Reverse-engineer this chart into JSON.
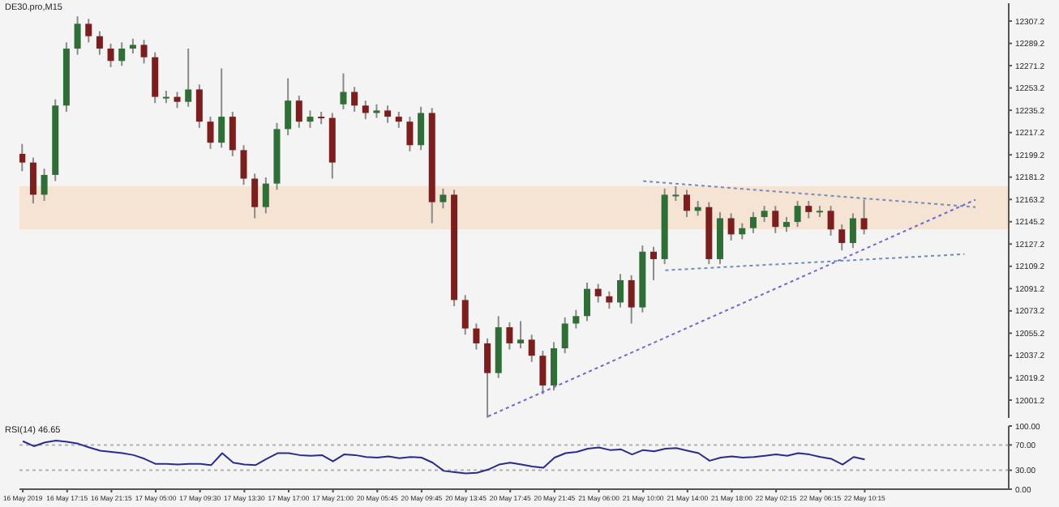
{
  "chart_data": [
    {
      "type": "candlestick",
      "title": "DE30.pro,M15",
      "categories": [
        null,
        null,
        null,
        null,
        null,
        null,
        null,
        null,
        null,
        null,
        null,
        null,
        null,
        null,
        null,
        null,
        null,
        null,
        null,
        null,
        null,
        null,
        null,
        null,
        null,
        null,
        null,
        null,
        null,
        null,
        null,
        null,
        null,
        null,
        null,
        null,
        null,
        null,
        null,
        null,
        null,
        null,
        null,
        null,
        null,
        null,
        null,
        null,
        null,
        null,
        null,
        null,
        null,
        null,
        null,
        null,
        null,
        null,
        null,
        null,
        null,
        null,
        null,
        null,
        null,
        null,
        null,
        null,
        null,
        null,
        null,
        null,
        null,
        null,
        null,
        null,
        null,
        null,
        null,
        null,
        null,
        null,
        null,
        null,
        null,
        null,
        null
      ],
      "ohlc": [
        [
          12200,
          12208,
          12186,
          12193
        ],
        [
          12193,
          12197,
          12160,
          12167
        ],
        [
          12167,
          12188,
          12162,
          12183
        ],
        [
          12183,
          12244,
          12178,
          12239
        ],
        [
          12239,
          12290,
          12234,
          12285
        ],
        [
          12285,
          12311,
          12280,
          12305
        ],
        [
          12305,
          12309,
          12290,
          12295
        ],
        [
          12295,
          12299,
          12280,
          12285
        ],
        [
          12285,
          12289,
          12270,
          12275
        ],
        [
          12275,
          12290,
          12271,
          12285
        ],
        [
          12285,
          12293,
          12281,
          12288
        ],
        [
          12288,
          12292,
          12273,
          12278
        ],
        [
          12278,
          12282,
          12241,
          12246
        ],
        [
          12246,
          12251,
          12241,
          12246
        ],
        [
          12246,
          12250,
          12237,
          12242
        ],
        [
          12242,
          12285,
          12238,
          12252
        ],
        [
          12252,
          12256,
          12221,
          12226
        ],
        [
          12226,
          12230,
          12204,
          12209
        ],
        [
          12209,
          12269,
          12205,
          12230
        ],
        [
          12230,
          12234,
          12198,
          12203
        ],
        [
          12203,
          12207,
          12175,
          12180
        ],
        [
          12180,
          12184,
          12148,
          12157
        ],
        [
          12157,
          12181,
          12152,
          12176
        ],
        [
          12176,
          12225,
          12171,
          12220
        ],
        [
          12220,
          12261,
          12215,
          12243
        ],
        [
          12243,
          12247,
          12221,
          12226
        ],
        [
          12226,
          12235,
          12221,
          12230
        ],
        [
          12230,
          12234,
          12224,
          12229
        ],
        [
          12229,
          12233,
          12180,
          12193
        ],
        [
          12240,
          12265,
          12236,
          12250
        ],
        [
          12250,
          12254,
          12234,
          12239
        ],
        [
          12239,
          12243,
          12228,
          12233
        ],
        [
          12233,
          12240,
          12229,
          12235
        ],
        [
          12235,
          12239,
          12225,
          12230
        ],
        [
          12230,
          12234,
          12221,
          12226
        ],
        [
          12226,
          12230,
          12202,
          12207
        ],
        [
          12207,
          12238,
          12203,
          12233
        ],
        [
          12233,
          12237,
          12144,
          12161
        ],
        [
          12161,
          12172,
          12156,
          12167
        ],
        [
          12167,
          12171,
          12077,
          12082
        ],
        [
          12082,
          12086,
          12054,
          12059
        ],
        [
          12059,
          12063,
          12042,
          12047
        ],
        [
          12047,
          12051,
          11987,
          12023
        ],
        [
          12023,
          12069,
          12019,
          12060
        ],
        [
          12060,
          12064,
          12042,
          12047
        ],
        [
          12047,
          12065,
          12043,
          12050
        ],
        [
          12050,
          12054,
          12032,
          12037
        ],
        [
          12037,
          12041,
          12006,
          12013
        ],
        [
          12013,
          12048,
          12009,
          12043
        ],
        [
          12043,
          12068,
          12039,
          12063
        ],
        [
          12063,
          12074,
          12059,
          12069
        ],
        [
          12069,
          12096,
          12065,
          12091
        ],
        [
          12091,
          12095,
          12080,
          12085
        ],
        [
          12085,
          12089,
          12075,
          12080
        ],
        [
          12080,
          12103,
          12076,
          12098
        ],
        [
          12098,
          12102,
          12063,
          12076
        ],
        [
          12076,
          12126,
          12072,
          12121
        ],
        [
          12121,
          12125,
          12098,
          12115
        ],
        [
          12115,
          12172,
          12111,
          12167
        ],
        [
          12167,
          12174,
          12162,
          12167
        ],
        [
          12167,
          12171,
          12149,
          12154
        ],
        [
          12154,
          12162,
          12150,
          12157
        ],
        [
          12157,
          12161,
          12111,
          12115
        ],
        [
          12115,
          12153,
          12111,
          12148
        ],
        [
          12148,
          12152,
          12130,
          12135
        ],
        [
          12135,
          12144,
          12131,
          12140
        ],
        [
          12140,
          12153,
          12136,
          12149
        ],
        [
          12149,
          12158,
          12145,
          12154
        ],
        [
          12154,
          12158,
          12136,
          12141
        ],
        [
          12141,
          12149,
          12137,
          12145
        ],
        [
          12145,
          12162,
          12141,
          12158
        ],
        [
          12158,
          12162,
          12148,
          12153
        ],
        [
          12153,
          12158,
          12149,
          12154
        ],
        [
          12154,
          12158,
          12134,
          12139
        ],
        [
          12139,
          12143,
          12122,
          12128
        ],
        [
          12128,
          12152,
          12124,
          12148
        ],
        [
          12148,
          12163,
          12135,
          12139
        ],
        null,
        null,
        null,
        null,
        null,
        null,
        null,
        null,
        null,
        null
      ],
      "series": [
        {
          "type": "line",
          "color": "#6f8fb8",
          "line_style": "dotted",
          "values": [
            null,
            null,
            null,
            null,
            null,
            null,
            null,
            null,
            null,
            null,
            null,
            null,
            null,
            null,
            null,
            null,
            null,
            null,
            null,
            null,
            null,
            null,
            null,
            null,
            null,
            null,
            null,
            null,
            null,
            null,
            null,
            null,
            null,
            null,
            null,
            null,
            null,
            null,
            null,
            null,
            null,
            null,
            null,
            null,
            null,
            null,
            null,
            null,
            null,
            null,
            null,
            null,
            null,
            null,
            null,
            null,
            12178,
            null,
            null,
            null,
            null,
            null,
            null,
            null,
            null,
            null,
            null,
            null,
            null,
            null,
            null,
            null,
            null,
            null,
            null,
            null,
            null,
            null,
            null,
            null,
            null,
            null,
            null,
            null,
            null,
            null,
            12157
          ]
        },
        {
          "type": "line",
          "color": "#6f8fb8",
          "line_style": "dotted",
          "values": [
            null,
            null,
            null,
            null,
            null,
            null,
            null,
            null,
            null,
            null,
            null,
            null,
            null,
            null,
            null,
            null,
            null,
            null,
            null,
            null,
            null,
            null,
            null,
            null,
            null,
            null,
            null,
            null,
            null,
            null,
            null,
            null,
            null,
            null,
            null,
            null,
            null,
            null,
            null,
            null,
            null,
            null,
            null,
            null,
            null,
            null,
            null,
            null,
            null,
            null,
            null,
            null,
            null,
            null,
            null,
            null,
            null,
            null,
            12106,
            null,
            null,
            null,
            null,
            null,
            null,
            null,
            null,
            null,
            null,
            null,
            null,
            null,
            null,
            null,
            null,
            null,
            null,
            null,
            null,
            null,
            null,
            null,
            null,
            null,
            null,
            12119,
            null
          ]
        },
        {
          "type": "line",
          "color": "#6a6ad0",
          "line_style": "dotted",
          "values": [
            null,
            null,
            null,
            null,
            null,
            null,
            null,
            null,
            null,
            null,
            null,
            null,
            null,
            null,
            null,
            null,
            null,
            null,
            null,
            null,
            null,
            null,
            null,
            null,
            null,
            null,
            null,
            null,
            null,
            null,
            null,
            null,
            null,
            null,
            null,
            null,
            null,
            null,
            null,
            null,
            null,
            null,
            11988,
            null,
            null,
            null,
            null,
            null,
            null,
            null,
            null,
            null,
            null,
            null,
            null,
            null,
            null,
            null,
            null,
            null,
            null,
            null,
            null,
            null,
            null,
            null,
            null,
            null,
            null,
            null,
            null,
            null,
            null,
            null,
            null,
            null,
            null,
            null,
            null,
            null,
            null,
            null,
            null,
            null,
            null,
            null,
            12163
          ]
        }
      ],
      "bands": [
        {
          "axis": "y",
          "from": 12139,
          "to": 12174,
          "color": "#f5e3d3"
        }
      ],
      "ylim": [
        11986.8,
        12321.6
      ],
      "yticks": [
        12001.2,
        12019.2,
        12037.2,
        12055.2,
        12073.2,
        12091.2,
        12109.2,
        12127.2,
        12145.2,
        12163.2,
        12181.2,
        12199.2,
        12217.2,
        12235.2,
        12253.2,
        12271.2,
        12289.2,
        12307.2
      ],
      "tick_labels": "y"
    },
    {
      "type": "line",
      "title": "RSI(14) 46.65",
      "categories": [
        "16 May 2019",
        null,
        null,
        null,
        "16 May 17:15",
        null,
        null,
        null,
        "16 May 21:15",
        null,
        null,
        null,
        "17 May 05:00",
        null,
        null,
        null,
        "17 May 09:30",
        null,
        null,
        null,
        "17 May 13:30",
        null,
        null,
        null,
        "17 May 17:00",
        null,
        null,
        null,
        "17 May 21:00",
        null,
        null,
        null,
        "20 May 05:45",
        null,
        null,
        null,
        "20 May 09:45",
        null,
        null,
        null,
        "20 May 13:45",
        null,
        null,
        null,
        "20 May 17:45",
        null,
        null,
        null,
        "20 May 21:45",
        null,
        null,
        null,
        "21 May 06:00",
        null,
        null,
        null,
        "21 May 10:00",
        null,
        null,
        null,
        "21 May 14:00",
        null,
        null,
        null,
        "21 May 18:00",
        null,
        null,
        null,
        "22 May 02:15",
        null,
        null,
        null,
        "22 May 06:15",
        null,
        null,
        null,
        "22 May 10:15",
        null,
        null,
        null,
        null,
        null,
        null,
        null,
        null,
        null,
        null
      ],
      "series": [
        {
          "color": "#2b2b8c",
          "values": [
            76,
            68,
            74,
            77,
            75,
            72,
            66,
            61,
            59,
            57,
            54,
            48,
            40,
            40,
            39,
            40,
            40,
            38,
            57,
            42,
            39,
            38,
            48,
            57,
            57,
            54,
            53,
            54,
            44,
            55,
            54,
            51,
            50,
            52,
            49,
            51,
            50,
            42,
            29,
            27,
            25,
            26,
            31,
            39,
            42,
            39,
            36,
            34,
            50,
            57,
            59,
            64,
            66,
            62,
            63,
            55,
            62,
            60,
            64,
            65,
            61,
            57,
            45,
            50,
            52,
            50,
            51,
            53,
            55,
            53,
            57,
            55,
            51,
            48,
            39,
            51,
            47,
            null,
            null,
            null,
            null,
            null,
            null,
            null,
            null,
            null,
            null
          ]
        }
      ],
      "ylim": [
        0,
        100
      ],
      "yticks": [
        {
          "value": 0,
          "label": "0.00"
        },
        {
          "value": 30,
          "label": "30.00"
        },
        {
          "value": 70,
          "label": "70.00"
        },
        {
          "value": 100,
          "label": "100.00"
        }
      ],
      "ref_lines": [
        {
          "axis": "y",
          "value": 70,
          "color": "#b0b0b0",
          "line_style": "dotted"
        },
        {
          "axis": "y",
          "value": 30,
          "color": "#b0b0b0",
          "line_style": "dotted"
        }
      ]
    }
  ]
}
